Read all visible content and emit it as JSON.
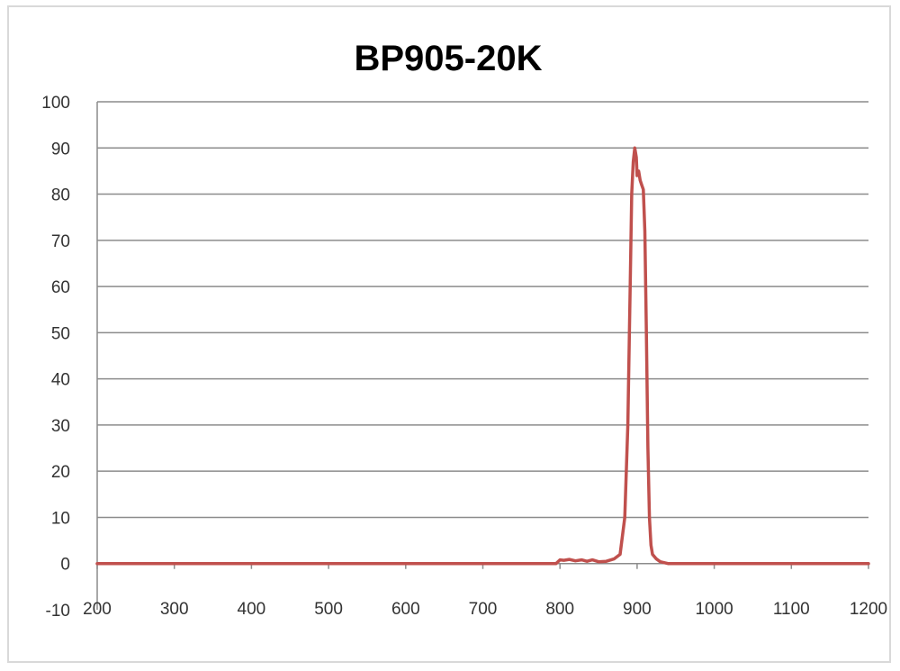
{
  "chart_data": {
    "type": "line",
    "title": "BP905-20K",
    "xlabel": "",
    "ylabel": "",
    "xlim": [
      200,
      1200
    ],
    "ylim": [
      -10,
      100
    ],
    "x_ticks": [
      "200",
      "300",
      "400",
      "500",
      "600",
      "700",
      "800",
      "900",
      "1000",
      "1100",
      "1200"
    ],
    "y_ticks": [
      "100",
      "90",
      "80",
      "70",
      "60",
      "50",
      "40",
      "30",
      "20",
      "10",
      "0",
      "-10"
    ],
    "grid": true,
    "legend": "none",
    "series": [
      {
        "color": "#c0504d",
        "x": [
          200,
          300,
          400,
          500,
          600,
          700,
          795,
          800,
          805,
          812,
          820,
          828,
          835,
          842,
          850,
          860,
          870,
          878,
          884,
          888,
          891,
          893,
          895,
          897,
          899,
          900,
          902,
          904,
          906,
          908,
          910,
          912,
          914,
          916,
          918,
          920,
          925,
          930,
          940,
          960,
          1000,
          1100,
          1200
        ],
        "y": [
          0,
          0,
          0,
          0,
          0,
          0,
          0,
          0.8,
          0.7,
          0.9,
          0.6,
          0.8,
          0.5,
          0.8,
          0.4,
          0.5,
          1,
          2,
          10,
          30,
          60,
          80,
          87,
          90,
          88,
          84,
          85,
          83,
          82,
          81,
          72,
          50,
          25,
          10,
          4,
          2,
          1,
          0.4,
          0,
          0,
          0,
          0,
          0
        ]
      }
    ]
  }
}
